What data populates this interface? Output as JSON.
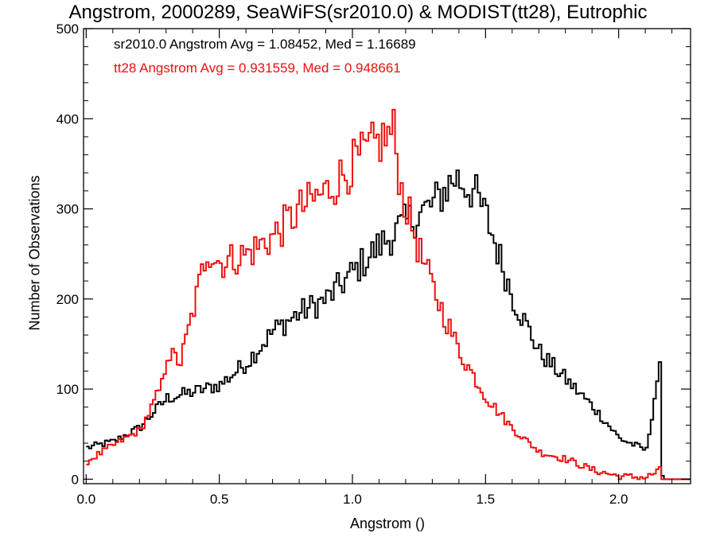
{
  "chart_data": {
    "type": "line",
    "title": "Angstrom, 2000289, SeaWiFS(sr2010.0) & MODIST(tt28), Eutrophic",
    "xlabel": "Angstrom ()",
    "ylabel": "Number of Observations",
    "xlim": [
      -0.01,
      2.27
    ],
    "ylim": [
      -5,
      500
    ],
    "x_ticks": [
      0.0,
      0.5,
      1.0,
      1.5,
      2.0
    ],
    "x_tick_labels": [
      "0.0",
      "0.5",
      "1.0",
      "1.5",
      "2.0"
    ],
    "y_ticks": [
      0,
      100,
      200,
      300,
      400,
      500
    ],
    "y_tick_labels": [
      "0",
      "100",
      "200",
      "300",
      "400",
      "500"
    ],
    "x_minor_step": 0.1,
    "y_minor_step": 20,
    "grid": false,
    "annotations": [
      {
        "text": "sr2010.0 Angstrom Avg = 1.08452, Med = 1.16689",
        "color": "#000000"
      },
      {
        "text": "tt28 Angstrom Avg = 0.931559, Med = 0.948661",
        "color": "#ee1111"
      }
    ],
    "series": [
      {
        "name": "sr2010.0",
        "color": "#000000",
        "step": "histogram",
        "x": [
          0.0,
          0.1,
          0.2,
          0.25,
          0.3,
          0.4,
          0.5,
          0.6,
          0.7,
          0.8,
          0.9,
          1.0,
          1.1,
          1.2,
          1.3,
          1.38,
          1.45,
          1.5,
          1.55,
          1.6,
          1.7,
          1.8,
          1.9,
          2.0,
          2.1,
          2.15,
          2.16
        ],
        "y": [
          35,
          42,
          58,
          75,
          90,
          97,
          105,
          130,
          165,
          185,
          200,
          230,
          260,
          285,
          305,
          335,
          320,
          290,
          245,
          200,
          140,
          110,
          80,
          45,
          32,
          130,
          0
        ]
      },
      {
        "name": "tt28",
        "color": "#ee1111",
        "step": "histogram",
        "x": [
          0.0,
          0.1,
          0.2,
          0.25,
          0.28,
          0.3,
          0.35,
          0.4,
          0.45,
          0.5,
          0.6,
          0.7,
          0.8,
          0.9,
          1.0,
          1.1,
          1.15,
          1.18,
          1.2,
          1.25,
          1.3,
          1.35,
          1.4,
          1.5,
          1.6,
          1.7,
          1.8,
          1.9,
          2.0,
          2.1,
          2.15,
          2.16
        ],
        "y": [
          20,
          38,
          55,
          85,
          105,
          140,
          130,
          190,
          255,
          240,
          250,
          270,
          300,
          320,
          350,
          375,
          385,
          320,
          300,
          250,
          210,
          175,
          140,
          90,
          55,
          30,
          22,
          10,
          3,
          2,
          10,
          0
        ]
      }
    ]
  }
}
